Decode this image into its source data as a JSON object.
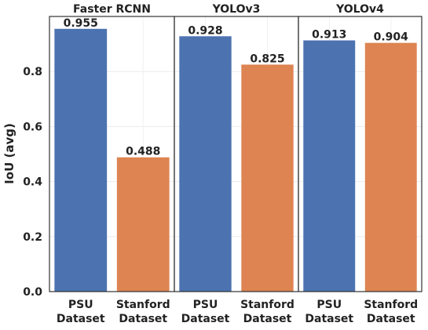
{
  "chart_data": {
    "type": "bar",
    "ylabel": "IoU (avg)",
    "ylim": [
      0,
      1.0
    ],
    "yticks": [
      {
        "value": 0.0,
        "label": "0.0"
      },
      {
        "value": 0.2,
        "label": "0.2"
      },
      {
        "value": 0.4,
        "label": "0.4"
      },
      {
        "value": 0.6,
        "label": "0.6"
      },
      {
        "value": 0.8,
        "label": "0.8"
      }
    ],
    "grid": true,
    "colors": {
      "psu": "#4c72b0",
      "stanford": "#dd8452"
    },
    "panels": [
      {
        "title": "Faster RCNN",
        "bars": [
          {
            "category": "PSU Dataset",
            "value": 0.955,
            "label": "0.955",
            "series": "psu"
          },
          {
            "category": "Stanford Dataset",
            "value": 0.488,
            "label": "0.488",
            "series": "stanford"
          }
        ]
      },
      {
        "title": "YOLOv3",
        "bars": [
          {
            "category": "PSU Dataset",
            "value": 0.928,
            "label": "0.928",
            "series": "psu"
          },
          {
            "category": "Stanford Dataset",
            "value": 0.825,
            "label": "0.825",
            "series": "stanford"
          }
        ]
      },
      {
        "title": "YOLOv4",
        "bars": [
          {
            "category": "PSU Dataset",
            "value": 0.913,
            "label": "0.913",
            "series": "psu"
          },
          {
            "category": "Stanford Dataset",
            "value": 0.904,
            "label": "0.904",
            "series": "stanford"
          }
        ]
      }
    ]
  }
}
